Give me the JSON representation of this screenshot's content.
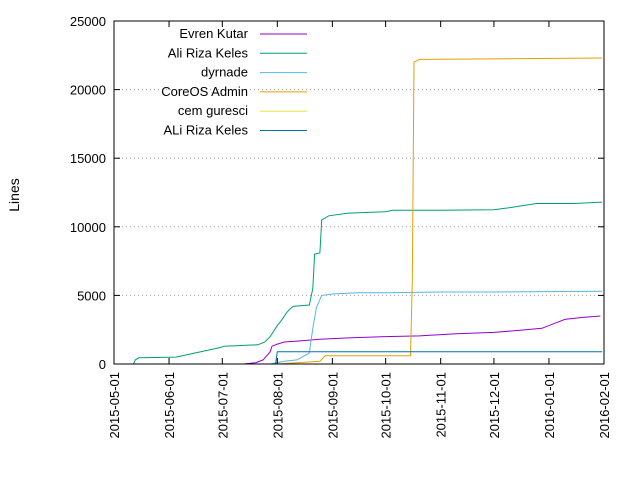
{
  "chart_data": {
    "type": "line",
    "title": "",
    "xlabel": "",
    "ylabel": "Lines",
    "xlim": [
      "2015-05-01",
      "2016-02-01"
    ],
    "ylim": [
      0,
      25000
    ],
    "y_ticks": [
      0,
      5000,
      10000,
      15000,
      20000,
      25000
    ],
    "x_ticks": [
      "2015-05-01",
      "2015-06-01",
      "2015-07-01",
      "2015-08-01",
      "2015-09-01",
      "2015-10-01",
      "2015-11-01",
      "2015-12-01",
      "2016-01-01",
      "2016-02-01"
    ],
    "grid": "horizontal dotted",
    "legend_position": "top-left",
    "series": [
      {
        "name": "Evren Kutar",
        "color": "#9400d3",
        "points": [
          [
            "2015-07-13",
            0
          ],
          [
            "2015-07-20",
            100
          ],
          [
            "2015-07-24",
            300
          ],
          [
            "2015-07-26",
            600
          ],
          [
            "2015-07-28",
            900
          ],
          [
            "2015-07-29",
            1300
          ],
          [
            "2015-08-01",
            1450
          ],
          [
            "2015-08-05",
            1600
          ],
          [
            "2015-08-15",
            1700
          ],
          [
            "2015-08-25",
            1800
          ],
          [
            "2015-09-10",
            1900
          ],
          [
            "2015-10-01",
            2000
          ],
          [
            "2015-10-20",
            2050
          ],
          [
            "2015-11-10",
            2200
          ],
          [
            "2015-12-01",
            2300
          ],
          [
            "2015-12-15",
            2450
          ],
          [
            "2015-12-28",
            2600
          ],
          [
            "2016-01-05",
            3000
          ],
          [
            "2016-01-10",
            3250
          ],
          [
            "2016-01-20",
            3400
          ],
          [
            "2016-01-30",
            3500
          ]
        ]
      },
      {
        "name": "Ali Riza Keles",
        "color": "#009e73",
        "points": [
          [
            "2015-05-12",
            0
          ],
          [
            "2015-05-13",
            300
          ],
          [
            "2015-05-15",
            450
          ],
          [
            "2015-06-05",
            500
          ],
          [
            "2015-06-12",
            700
          ],
          [
            "2015-06-30",
            1200
          ],
          [
            "2015-07-02",
            1300
          ],
          [
            "2015-07-21",
            1400
          ],
          [
            "2015-07-25",
            1600
          ],
          [
            "2015-07-28",
            2000
          ],
          [
            "2015-08-01",
            2800
          ],
          [
            "2015-08-04",
            3300
          ],
          [
            "2015-08-06",
            3700
          ],
          [
            "2015-08-08",
            4000
          ],
          [
            "2015-08-10",
            4200
          ],
          [
            "2015-08-19",
            4300
          ],
          [
            "2015-08-21",
            5500
          ],
          [
            "2015-08-22",
            8000
          ],
          [
            "2015-08-25",
            8100
          ],
          [
            "2015-08-26",
            10500
          ],
          [
            "2015-08-30",
            10800
          ],
          [
            "2015-09-10",
            11000
          ],
          [
            "2015-10-01",
            11100
          ],
          [
            "2015-10-05",
            11200
          ],
          [
            "2015-11-01",
            11200
          ],
          [
            "2015-12-01",
            11250
          ],
          [
            "2015-12-10",
            11400
          ],
          [
            "2015-12-25",
            11700
          ],
          [
            "2016-01-15",
            11700
          ],
          [
            "2016-01-31",
            11800
          ]
        ]
      },
      {
        "name": "dyrnade",
        "color": "#56b4e9",
        "points": [
          [
            "2015-07-28",
            0
          ],
          [
            "2015-08-05",
            200
          ],
          [
            "2015-08-12",
            300
          ],
          [
            "2015-08-19",
            800
          ],
          [
            "2015-08-21",
            2600
          ],
          [
            "2015-08-23",
            4100
          ],
          [
            "2015-08-26",
            5000
          ],
          [
            "2015-09-01",
            5100
          ],
          [
            "2015-09-15",
            5200
          ],
          [
            "2015-10-01",
            5200
          ],
          [
            "2015-11-01",
            5250
          ],
          [
            "2015-12-01",
            5250
          ],
          [
            "2016-01-01",
            5280
          ],
          [
            "2016-01-31",
            5300
          ]
        ]
      },
      {
        "name": "CoreOS Admin",
        "color": "#e69f00",
        "points": [
          [
            "2015-08-01",
            0
          ],
          [
            "2015-08-25",
            200
          ],
          [
            "2015-08-28",
            600
          ],
          [
            "2015-10-15",
            600
          ],
          [
            "2015-10-16",
            6000
          ],
          [
            "2015-10-17",
            22000
          ],
          [
            "2015-10-20",
            22200
          ],
          [
            "2016-01-31",
            22300
          ]
        ]
      },
      {
        "name": "cem guresci",
        "color": "#f0e442",
        "points": []
      },
      {
        "name": "ALi Riza Keles",
        "color": "#0072b2",
        "points": [
          [
            "2015-07-31",
            0
          ],
          [
            "2015-08-01",
            900
          ],
          [
            "2016-01-31",
            900
          ]
        ]
      }
    ]
  }
}
